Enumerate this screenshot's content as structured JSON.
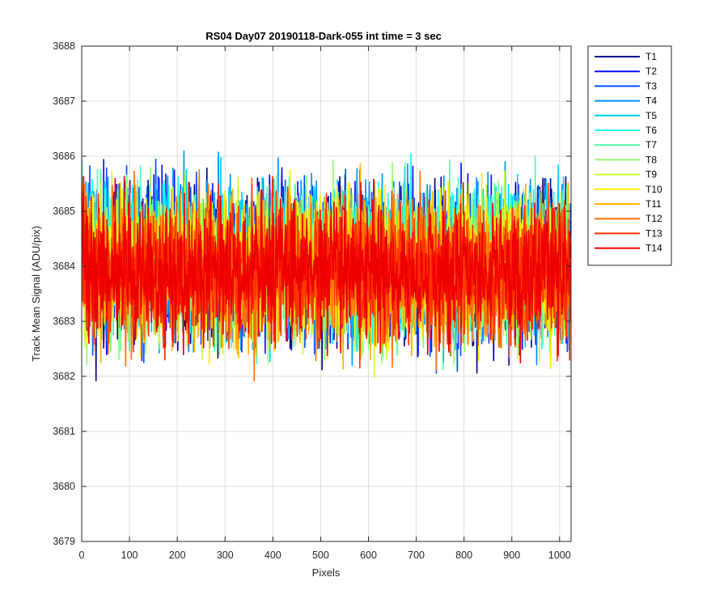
{
  "chart_data": {
    "type": "line",
    "title": "RS04 Day07 20190118-Dark-055 int time = 3 sec",
    "xlabel": "Pixels",
    "ylabel": "Track Mean Signal (ADU/pix)",
    "xlim": [
      0,
      1024
    ],
    "ylim": [
      3679,
      3688
    ],
    "x_ticks": [
      0,
      100,
      200,
      300,
      400,
      500,
      600,
      700,
      800,
      900,
      1000
    ],
    "y_ticks": [
      3679,
      3680,
      3681,
      3682,
      3683,
      3684,
      3685,
      3686,
      3687,
      3688
    ],
    "grid": true,
    "legend_position": "outside-top-right",
    "n_points": 1024,
    "series": [
      {
        "name": "T1",
        "color": "#00008f",
        "mean": 3684.0,
        "spread": 1.25,
        "seed": 11
      },
      {
        "name": "T2",
        "color": "#0010ff",
        "mean": 3684.1,
        "spread": 1.25,
        "seed": 23
      },
      {
        "name": "T3",
        "color": "#0050ff",
        "mean": 3684.1,
        "spread": 1.25,
        "seed": 37
      },
      {
        "name": "T4",
        "color": "#0090ff",
        "mean": 3684.2,
        "spread": 1.25,
        "seed": 41
      },
      {
        "name": "T5",
        "color": "#00d0ff",
        "mean": 3684.2,
        "spread": 1.2,
        "seed": 53
      },
      {
        "name": "T6",
        "color": "#10ffef",
        "mean": 3684.1,
        "spread": 1.2,
        "seed": 67
      },
      {
        "name": "T7",
        "color": "#50ffaf",
        "mean": 3684.1,
        "spread": 1.2,
        "seed": 71
      },
      {
        "name": "T8",
        "color": "#90ff6f",
        "mean": 3684.0,
        "spread": 1.2,
        "seed": 83
      },
      {
        "name": "T9",
        "color": "#cfff30",
        "mean": 3684.0,
        "spread": 1.2,
        "seed": 97
      },
      {
        "name": "T10",
        "color": "#ffef00",
        "mean": 3684.0,
        "spread": 1.2,
        "seed": 101
      },
      {
        "name": "T11",
        "color": "#ffb000",
        "mean": 3683.9,
        "spread": 1.2,
        "seed": 113
      },
      {
        "name": "T12",
        "color": "#ff7000",
        "mean": 3683.9,
        "spread": 1.15,
        "seed": 127
      },
      {
        "name": "T13",
        "color": "#ff3000",
        "mean": 3683.9,
        "spread": 1.15,
        "seed": 131
      },
      {
        "name": "T14",
        "color": "#ef0000",
        "mean": 3683.9,
        "spread": 1.1,
        "seed": 139
      }
    ]
  }
}
